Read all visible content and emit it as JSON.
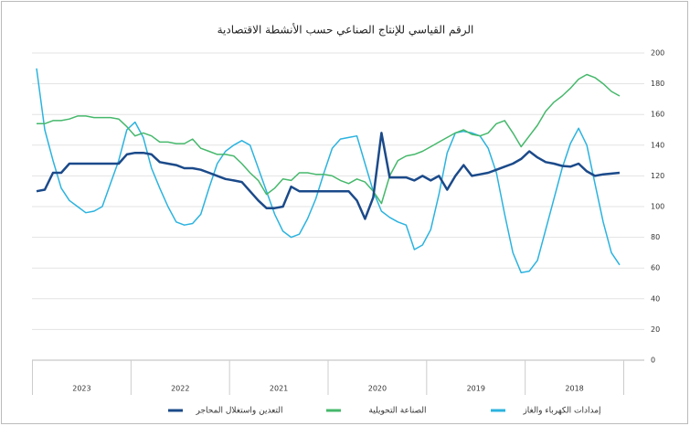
{
  "chart_data": {
    "type": "line",
    "title": "الرقم القياسي للإنتاج الصناعي حسب الأنشطة الاقتصادية",
    "categories": [
      null,
      null,
      null,
      null,
      null,
      null,
      null,
      null,
      null,
      null,
      null,
      null,
      null,
      null,
      null,
      null,
      null,
      null,
      null,
      null,
      null,
      null,
      null,
      null,
      null,
      null,
      null,
      null,
      null,
      null,
      null,
      null,
      null,
      null,
      null,
      null,
      null,
      null,
      null,
      null,
      null,
      null,
      null,
      null,
      null,
      null,
      null,
      null,
      null,
      null,
      null,
      null,
      null,
      null,
      null,
      null,
      null,
      null,
      null,
      null,
      null,
      null,
      null,
      null,
      null,
      null,
      null,
      null,
      null,
      null,
      null,
      null
    ],
    "years": [
      "2018",
      "2019",
      "2020",
      "2021",
      "2022",
      "2023"
    ],
    "x_reversed": true,
    "ylim": [
      0,
      200
    ],
    "yticks": [
      0,
      20,
      40,
      60,
      80,
      100,
      120,
      140,
      160,
      180,
      200
    ],
    "grid": true,
    "series": [
      {
        "name": "إمدادات الكهرباء والغاز",
        "color": "#2bb3df",
        "width": 1.5,
        "values": [
          62,
          70,
          90,
          115,
          140,
          151,
          141,
          125,
          105,
          85,
          65,
          58,
          57,
          70,
          95,
          122,
          138,
          146,
          148,
          149,
          148,
          135,
          108,
          85,
          75,
          72,
          88,
          90,
          93,
          97,
          110,
          128,
          146,
          145,
          144,
          138,
          122,
          105,
          92,
          82,
          80,
          84,
          95,
          110,
          125,
          140,
          143,
          140,
          136,
          128,
          112,
          95,
          89,
          88,
          90,
          100,
          112,
          125,
          145,
          155,
          150,
          130,
          115,
          100,
          97,
          96,
          100,
          104,
          112,
          130,
          150,
          190
        ]
      },
      {
        "name": "الصناعة التحويلية",
        "color": "#45b86b",
        "width": 1.5,
        "values": [
          172,
          175,
          180,
          184,
          186,
          183,
          177,
          172,
          168,
          162,
          153,
          146,
          139,
          148,
          156,
          154,
          148,
          146,
          147,
          150,
          148,
          145,
          142,
          139,
          136,
          134,
          133,
          130,
          120,
          102,
          110,
          116,
          118,
          115,
          117,
          120,
          121,
          121,
          122,
          122,
          117,
          118,
          112,
          108,
          117,
          122,
          128,
          133,
          134,
          134,
          136,
          138,
          144,
          141,
          141,
          142,
          142,
          146,
          148,
          146,
          152,
          157,
          158,
          158,
          158,
          159,
          159,
          157,
          156,
          156,
          154,
          154
        ]
      },
      {
        "name": "التعدين واستغلال المحاجر",
        "color": "#1b4a8a",
        "width": 2.5,
        "values": [
          122,
          121.5,
          121,
          120,
          123,
          128,
          126,
          126.5,
          128,
          129,
          132,
          136,
          131,
          128,
          126,
          124,
          122,
          121,
          120,
          127,
          120,
          111,
          120,
          117,
          120,
          117,
          119,
          119,
          119,
          148,
          106,
          92,
          104,
          110,
          110,
          110,
          110,
          110,
          110,
          110,
          113,
          100,
          99,
          99,
          104,
          110,
          116,
          117,
          118,
          120,
          122,
          124,
          125,
          125,
          127,
          128,
          129,
          134,
          135,
          135,
          134,
          128,
          128,
          128,
          128,
          128,
          128,
          128,
          122,
          122,
          111,
          110
        ]
      }
    ]
  }
}
